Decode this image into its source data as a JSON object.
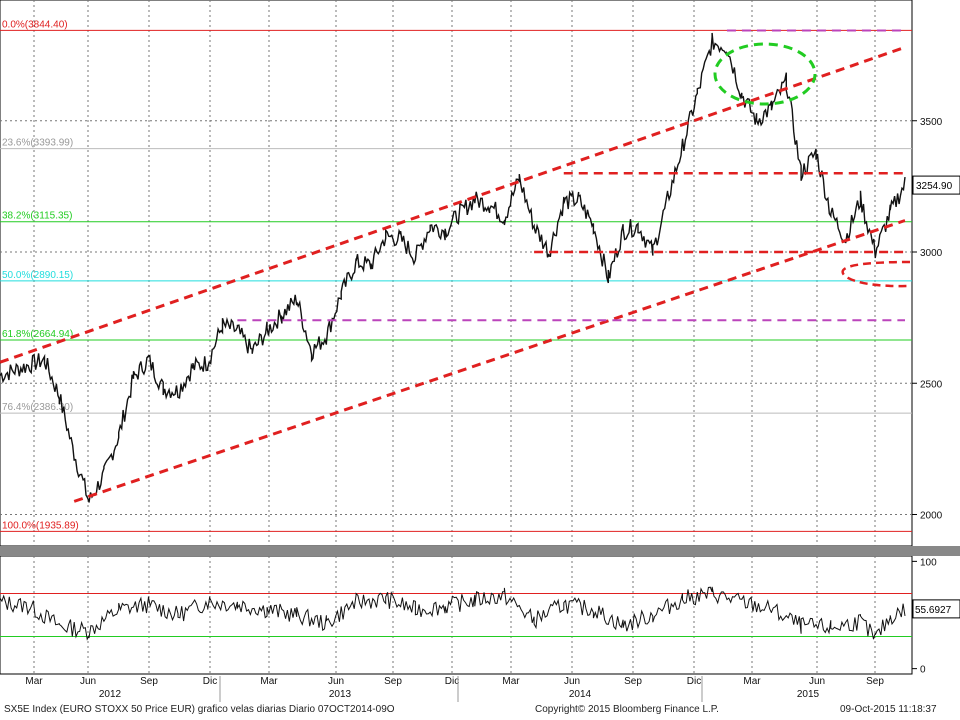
{
  "chart_data": [
    {
      "type": "candlestick",
      "title": "",
      "x_labels": {
        "months": [
          "Mar",
          "Jun",
          "Sep",
          "Dic",
          "Mar",
          "Jun",
          "Sep",
          "Dic",
          "Mar",
          "Jun",
          "Sep",
          "Dic",
          "Mar",
          "Jun",
          "Sep"
        ],
        "years": [
          "2012",
          "2013",
          "2014",
          "2015"
        ]
      },
      "x_range": [
        "2012-01",
        "2015-10"
      ],
      "ylim": [
        1880,
        3960
      ],
      "y_ticks": [
        2000,
        2500,
        3000,
        3500
      ],
      "last_value": "3254.90",
      "price_path": [
        [
          0,
          2530
        ],
        [
          3,
          2590
        ],
        [
          4,
          2450
        ],
        [
          5,
          2230
        ],
        [
          6,
          2050
        ],
        [
          7,
          2150
        ],
        [
          8,
          2300
        ],
        [
          9,
          2520
        ],
        [
          10,
          2590
        ],
        [
          11,
          2480
        ],
        [
          12,
          2470
        ],
        [
          13,
          2560
        ],
        [
          14,
          2580
        ],
        [
          15,
          2720
        ],
        [
          16,
          2700
        ],
        [
          17,
          2620
        ],
        [
          18,
          2700
        ],
        [
          19,
          2760
        ],
        [
          20,
          2820
        ],
        [
          21,
          2620
        ],
        [
          22,
          2680
        ],
        [
          23,
          2840
        ],
        [
          24,
          2960
        ],
        [
          25,
          2950
        ],
        [
          26,
          3060
        ],
        [
          27,
          3050
        ],
        [
          28,
          2980
        ],
        [
          29,
          3100
        ],
        [
          30,
          3080
        ],
        [
          31,
          3150
        ],
        [
          32,
          3200
        ],
        [
          33,
          3180
        ],
        [
          34,
          3130
        ],
        [
          35,
          3280
        ],
        [
          36,
          3100
        ],
        [
          37,
          3000
        ],
        [
          38,
          3190
        ],
        [
          39,
          3200
        ],
        [
          40,
          3100
        ],
        [
          41,
          2900
        ],
        [
          42,
          3080
        ],
        [
          43,
          3100
        ],
        [
          44,
          3000
        ],
        [
          45,
          3200
        ],
        [
          46,
          3400
        ],
        [
          47,
          3600
        ],
        [
          48,
          3800
        ],
        [
          49,
          3780
        ],
        [
          50,
          3600
        ],
        [
          51,
          3500
        ],
        [
          52,
          3550
        ],
        [
          53,
          3650
        ],
        [
          54,
          3300
        ],
        [
          55,
          3380
        ],
        [
          56,
          3150
        ],
        [
          57,
          3050
        ],
        [
          58,
          3200
        ],
        [
          59,
          3000
        ],
        [
          60,
          3150
        ],
        [
          61,
          3260
        ]
      ],
      "fibonacci_levels": [
        {
          "label": "0.0%(3844.40)",
          "value": 3844.4,
          "color": "#e02020"
        },
        {
          "label": "23.6%(3393.99)",
          "value": 3393.99,
          "color": "#bbbbbb"
        },
        {
          "label": "38.2%(3115.35)",
          "value": 3115.35,
          "color": "#22cc22"
        },
        {
          "label": "50.0%(2890.15)",
          "value": 2890.15,
          "color": "#22dddd"
        },
        {
          "label": "61.8%(2664.94)",
          "value": 2664.94,
          "color": "#22cc22"
        },
        {
          "label": "76.4%(2386.30)",
          "value": 2386.3,
          "color": "#bbbbbb"
        },
        {
          "label": "100.0%(1935.89)",
          "value": 1935.89,
          "color": "#e02020"
        }
      ],
      "annotations": {
        "channel_upper": [
          [
            0,
            2580
          ],
          [
            61,
            3780
          ]
        ],
        "channel_lower": [
          [
            5,
            2050
          ],
          [
            61,
            3120
          ]
        ],
        "resistance_dashed": [
          [
            38,
            3300
          ],
          [
            61,
            3300
          ]
        ],
        "support_dashed": [
          [
            36,
            3000
          ],
          [
            61,
            3000
          ]
        ],
        "purple_top": [
          [
            49,
            3844
          ],
          [
            61,
            3844
          ]
        ],
        "purple_mid": [
          [
            16,
            2740
          ],
          [
            61,
            2740
          ]
        ]
      }
    },
    {
      "type": "line",
      "title": "",
      "ylim": [
        -5,
        105
      ],
      "y_ticks": [
        0,
        100
      ],
      "upper_level": 70,
      "lower_level": 30,
      "last_value": "55.6927",
      "rsi_path": [
        [
          0,
          62
        ],
        [
          2,
          58
        ],
        [
          4,
          40
        ],
        [
          6,
          35
        ],
        [
          8,
          55
        ],
        [
          10,
          60
        ],
        [
          12,
          50
        ],
        [
          14,
          62
        ],
        [
          16,
          60
        ],
        [
          18,
          55
        ],
        [
          20,
          50
        ],
        [
          22,
          42
        ],
        [
          24,
          62
        ],
        [
          26,
          65
        ],
        [
          28,
          55
        ],
        [
          30,
          58
        ],
        [
          32,
          64
        ],
        [
          34,
          68
        ],
        [
          36,
          45
        ],
        [
          38,
          60
        ],
        [
          40,
          55
        ],
        [
          42,
          40
        ],
        [
          44,
          50
        ],
        [
          46,
          65
        ],
        [
          48,
          70
        ],
        [
          50,
          62
        ],
        [
          52,
          55
        ],
        [
          54,
          40
        ],
        [
          56,
          38
        ],
        [
          58,
          44
        ],
        [
          59,
          28
        ],
        [
          60,
          48
        ],
        [
          61,
          55
        ]
      ]
    }
  ],
  "footer": {
    "left": "SX5E Index (EURO STOXX 50 Price EUR) grafico velas diarias  Diario 07OCT2014-09O",
    "center": "Copyright© 2015 Bloomberg Finance L.P.",
    "right": "09-Oct-2015 11:18:37"
  },
  "colors": {
    "price": "#111111",
    "trend_red": "#e02020",
    "dashed_purple": "#bb44bb",
    "ellipse_green": "#22cc22",
    "grid": "#777777"
  }
}
